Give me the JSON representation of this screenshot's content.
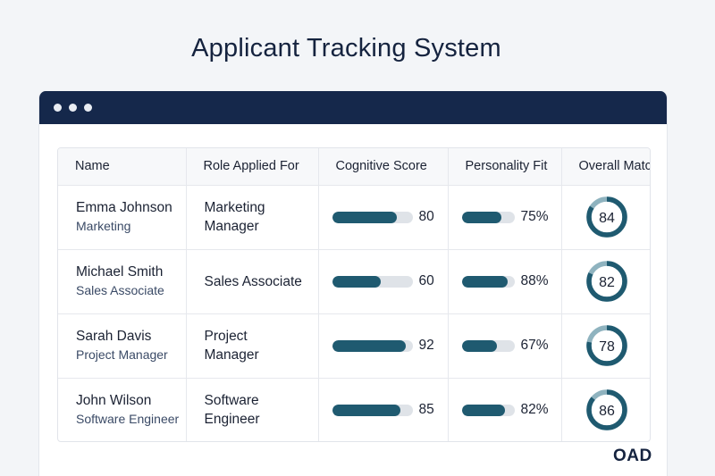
{
  "page": {
    "title": "Applicant Tracking System"
  },
  "table": {
    "headers": [
      "Name",
      "Role Applied For",
      "Cognitive Score",
      "Personality Fit",
      "Overall Match"
    ],
    "rows": [
      {
        "name": "Emma Johnson",
        "department": "Marketing",
        "role": "Marketing Manager",
        "cognitive_score": 80,
        "cognitive_label": "80",
        "personality_fit": 75,
        "personality_label": "75%",
        "overall_match": 84,
        "overall_label": "84"
      },
      {
        "name": "Michael Smith",
        "department": "Sales Associate",
        "role": "Sales Associate",
        "cognitive_score": 60,
        "cognitive_label": "60",
        "personality_fit": 88,
        "personality_label": "88%",
        "overall_match": 82,
        "overall_label": "82"
      },
      {
        "name": "Sarah Davis",
        "department": "Project Manager",
        "role": "Project Manager",
        "cognitive_score": 92,
        "cognitive_label": "92",
        "personality_fit": 67,
        "personality_label": "67%",
        "overall_match": 78,
        "overall_label": "78"
      },
      {
        "name": "John Wilson",
        "department": "Software Engineer",
        "role": "Software Engineer",
        "cognitive_score": 85,
        "cognitive_label": "85",
        "personality_fit": 82,
        "personality_label": "82%",
        "overall_match": 86,
        "overall_label": "86"
      }
    ]
  },
  "brand": {
    "label": "OAD"
  },
  "colors": {
    "accent": "#1f5a70",
    "ring_track": "#8fb3bf",
    "titlebar": "#15284b",
    "bar_track": "#dfe3e8"
  }
}
